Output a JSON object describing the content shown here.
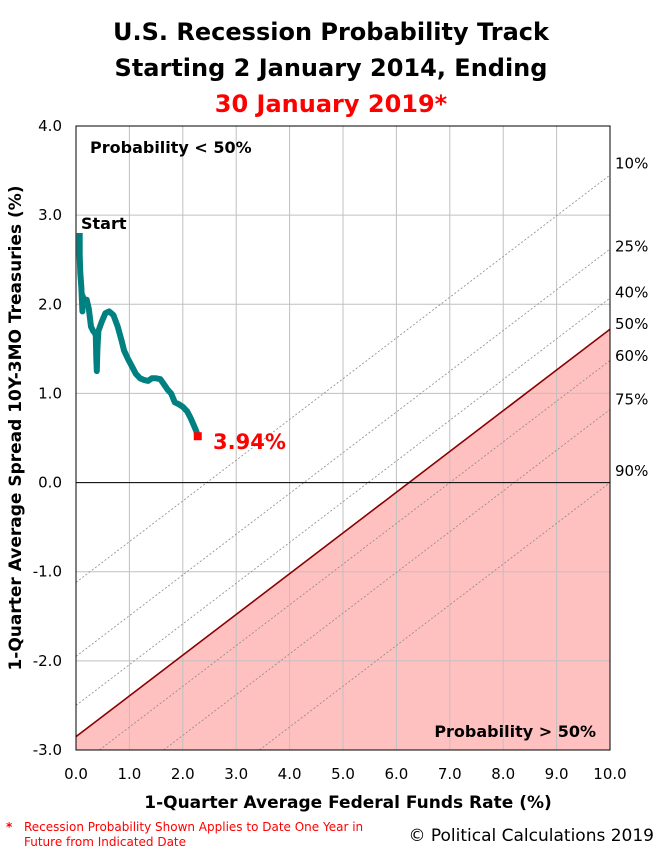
{
  "title_lines": [
    "U.S. Recession Probability Track",
    "Starting 2 January 2014, Ending",
    "30 January 2019*"
  ],
  "footnote": {
    "marker": "*",
    "text": "Recession Probability Shown Applies to Date One Year in Future from Indicated Date"
  },
  "copyright": "© Political Calculations 2019",
  "colors": {
    "track": "#008080",
    "endpoint": "#ff0000",
    "threshold_line": "#8b0000",
    "shade": "#ffc0c0",
    "grid": "#c0c0c0"
  },
  "chart_data": {
    "type": "line",
    "xlabel": "1-Quarter Average Federal Funds Rate (%)",
    "ylabel": "1-Quarter Average Spread 10Y-3MO Treasuries (%)",
    "xlim": [
      0,
      10
    ],
    "ylim": [
      -3,
      4
    ],
    "xticks": [
      "0.0",
      "1.0",
      "2.0",
      "3.0",
      "4.0",
      "5.0",
      "6.0",
      "7.0",
      "8.0",
      "9.0",
      "10.0"
    ],
    "yticks": [
      "4.0",
      "3.0",
      "2.0",
      "1.0",
      "0.0",
      "-1.0",
      "-2.0",
      "-3.0"
    ],
    "grid": true,
    "zero_line": true,
    "region_labels": {
      "upper_left": "Probability < 50%",
      "lower_right": "Probability > 50%"
    },
    "start_label": "Start",
    "end_label": "3.94%",
    "end_point": [
      2.28,
      0.52
    ],
    "probability_lines": [
      {
        "label": "10%",
        "y_at_x0": -1.12,
        "y_at_x10": 3.45
      },
      {
        "label": "25%",
        "y_at_x0": -1.95,
        "y_at_x10": 2.62
      },
      {
        "label": "40%",
        "y_at_x0": -2.5,
        "y_at_x10": 2.07
      },
      {
        "label": "50%",
        "y_at_x0": -2.85,
        "y_at_x10": 1.72,
        "threshold": true
      },
      {
        "label": "60%",
        "y_at_x0": -3.2,
        "y_at_x10": 1.37
      },
      {
        "label": "75%",
        "y_at_x0": -3.75,
        "y_at_x10": 0.82
      },
      {
        "label": "90%",
        "y_at_x0": -4.57,
        "y_at_x10": 0.0
      }
    ],
    "prob_label_y": [
      3.58,
      2.65,
      2.13,
      1.78,
      1.42,
      0.93,
      0.13
    ],
    "track_series": [
      [
        0.07,
        2.8
      ],
      [
        0.07,
        2.55
      ],
      [
        0.08,
        2.35
      ],
      [
        0.1,
        2.2
      ],
      [
        0.11,
        2.05
      ],
      [
        0.12,
        1.92
      ],
      [
        0.12,
        2.1
      ],
      [
        0.15,
        2.05
      ],
      [
        0.2,
        2.05
      ],
      [
        0.24,
        1.95
      ],
      [
        0.28,
        1.75
      ],
      [
        0.32,
        1.7
      ],
      [
        0.35,
        1.68
      ],
      [
        0.37,
        1.65
      ],
      [
        0.38,
        1.4
      ],
      [
        0.39,
        1.25
      ],
      [
        0.4,
        1.5
      ],
      [
        0.42,
        1.7
      ],
      [
        0.48,
        1.8
      ],
      [
        0.55,
        1.9
      ],
      [
        0.62,
        1.92
      ],
      [
        0.7,
        1.88
      ],
      [
        0.78,
        1.75
      ],
      [
        0.85,
        1.6
      ],
      [
        0.9,
        1.48
      ],
      [
        0.98,
        1.38
      ],
      [
        1.05,
        1.3
      ],
      [
        1.12,
        1.22
      ],
      [
        1.2,
        1.17
      ],
      [
        1.28,
        1.15
      ],
      [
        1.35,
        1.14
      ],
      [
        1.42,
        1.17
      ],
      [
        1.5,
        1.17
      ],
      [
        1.58,
        1.16
      ],
      [
        1.65,
        1.1
      ],
      [
        1.72,
        1.04
      ],
      [
        1.78,
        1.0
      ],
      [
        1.85,
        0.9
      ],
      [
        1.92,
        0.88
      ],
      [
        2.0,
        0.85
      ],
      [
        2.08,
        0.8
      ],
      [
        2.15,
        0.72
      ],
      [
        2.2,
        0.65
      ],
      [
        2.25,
        0.58
      ],
      [
        2.28,
        0.52
      ]
    ]
  }
}
